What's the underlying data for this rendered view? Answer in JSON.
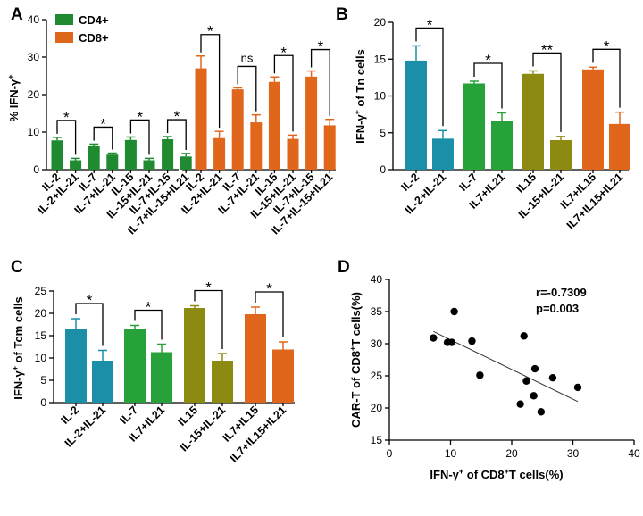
{
  "colors": {
    "cd4": "#1f8a2f",
    "cd8": "#e0661c",
    "teal": "#1b8fa8",
    "green": "#27a13a",
    "olive": "#8d8a12",
    "orange": "#e0661c"
  },
  "chart_data": [
    {
      "panel": "A",
      "type": "bar",
      "ylabel": "% IFN-γ+",
      "ylim": [
        0,
        40
      ],
      "yticks": [
        0,
        10,
        20,
        30,
        40
      ],
      "legend": [
        "CD4+",
        "CD8+"
      ],
      "groups": [
        {
          "name": "CD4+",
          "color_key": "cd4",
          "categories": [
            "IL-2",
            "IL-2+IL-21",
            "IL-7",
            "IL-7+IL-21",
            "IL-15",
            "IL-15+IL-21",
            "IL-7+IL-15",
            "IL-7+IL-15+IL21"
          ],
          "values": [
            7.8,
            2.5,
            6.2,
            4.0,
            7.9,
            2.5,
            8.1,
            3.5
          ],
          "errors": [
            0.8,
            0.5,
            0.6,
            0.4,
            0.8,
            0.5,
            0.7,
            0.8
          ]
        },
        {
          "name": "CD8+",
          "color_key": "cd8",
          "categories": [
            "IL-2",
            "IL-2+IL-21",
            "IL-7",
            "IL-7+IL-21",
            "IL-15",
            "IL-15+IL-21",
            "IL-7+IL-15",
            "IL-7+IL-15+IL21"
          ],
          "values": [
            27.0,
            8.4,
            21.4,
            12.6,
            23.4,
            8.2,
            24.8,
            11.8
          ],
          "errors": [
            3.3,
            1.8,
            0.4,
            2.0,
            1.3,
            1.0,
            1.5,
            1.6
          ]
        }
      ],
      "annotations": [
        {
          "group": 0,
          "pair": [
            0,
            1
          ],
          "label": "*"
        },
        {
          "group": 0,
          "pair": [
            2,
            3
          ],
          "label": "*"
        },
        {
          "group": 0,
          "pair": [
            4,
            5
          ],
          "label": "*"
        },
        {
          "group": 0,
          "pair": [
            6,
            7
          ],
          "label": "*"
        },
        {
          "group": 1,
          "pair": [
            0,
            1
          ],
          "label": "*"
        },
        {
          "group": 1,
          "pair": [
            2,
            3
          ],
          "label": "ns"
        },
        {
          "group": 1,
          "pair": [
            4,
            5
          ],
          "label": "*"
        },
        {
          "group": 1,
          "pair": [
            6,
            7
          ],
          "label": "*"
        }
      ]
    },
    {
      "panel": "B",
      "type": "bar",
      "ylabel": "IFN-γ+ of Tn cells",
      "ylim": [
        0,
        20
      ],
      "yticks": [
        0,
        5,
        10,
        15,
        20
      ],
      "categories": [
        "IL-2",
        "IL-2+IL-21",
        "IL-7",
        "IL7+IL21",
        "IL15",
        "IL-15+IL-21",
        "IL7+IL15",
        "IL7+IL15+IL21"
      ],
      "values": [
        14.8,
        4.2,
        11.7,
        6.6,
        13.0,
        4.0,
        13.6,
        6.2
      ],
      "errors": [
        2.0,
        1.1,
        0.3,
        1.1,
        0.4,
        0.5,
        0.3,
        1.6
      ],
      "color_keys": [
        "teal",
        "teal",
        "green",
        "green",
        "olive",
        "olive",
        "orange",
        "orange"
      ],
      "annotations": [
        {
          "pair": [
            0,
            1
          ],
          "label": "*"
        },
        {
          "pair": [
            2,
            3
          ],
          "label": "*"
        },
        {
          "pair": [
            4,
            5
          ],
          "label": "**"
        },
        {
          "pair": [
            6,
            7
          ],
          "label": "*"
        }
      ]
    },
    {
      "panel": "C",
      "type": "bar",
      "ylabel": "IFN-γ+ of Tcm cells",
      "ylim": [
        0,
        25
      ],
      "yticks": [
        0,
        5,
        10,
        15,
        20,
        25
      ],
      "categories": [
        "IL-2",
        "IL-2+IL-21",
        "IL-7",
        "IL7+IL21",
        "IL15",
        "IL-15+IL-21",
        "IL7+IL15",
        "IL7+IL15+IL21"
      ],
      "values": [
        16.6,
        9.4,
        16.4,
        11.3,
        21.2,
        9.4,
        19.8,
        11.9
      ],
      "errors": [
        2.2,
        2.3,
        0.9,
        1.8,
        0.5,
        1.6,
        1.6,
        1.7
      ],
      "color_keys": [
        "teal",
        "teal",
        "green",
        "green",
        "olive",
        "olive",
        "orange",
        "orange"
      ],
      "annotations": [
        {
          "pair": [
            0,
            1
          ],
          "label": "*"
        },
        {
          "pair": [
            2,
            3
          ],
          "label": "*"
        },
        {
          "pair": [
            4,
            5
          ],
          "label": "*"
        },
        {
          "pair": [
            6,
            7
          ],
          "label": "*"
        }
      ]
    },
    {
      "panel": "D",
      "type": "scatter",
      "xlabel": "IFN-γ+ of CD8+T cells(%)",
      "ylabel": "CAR-T of CD8+T cells(%)",
      "xlim": [
        0,
        40
      ],
      "ylim": [
        15,
        40
      ],
      "xticks": [
        0,
        10,
        20,
        30,
        40
      ],
      "yticks": [
        15,
        20,
        25,
        30,
        35,
        40
      ],
      "points": [
        [
          7.2,
          30.9
        ],
        [
          9.5,
          30.2
        ],
        [
          10.2,
          30.2
        ],
        [
          10.6,
          35.0
        ],
        [
          13.5,
          30.4
        ],
        [
          14.8,
          25.1
        ],
        [
          21.4,
          20.6
        ],
        [
          22.0,
          31.2
        ],
        [
          22.4,
          24.2
        ],
        [
          23.6,
          21.9
        ],
        [
          23.8,
          26.1
        ],
        [
          24.8,
          19.4
        ],
        [
          26.7,
          24.7
        ],
        [
          30.8,
          23.2
        ]
      ],
      "fit": {
        "x": [
          7.2,
          30.8
        ],
        "y": [
          31.9,
          21.0
        ]
      },
      "stats": [
        "r=-0.7309",
        "p=0.003"
      ]
    }
  ]
}
